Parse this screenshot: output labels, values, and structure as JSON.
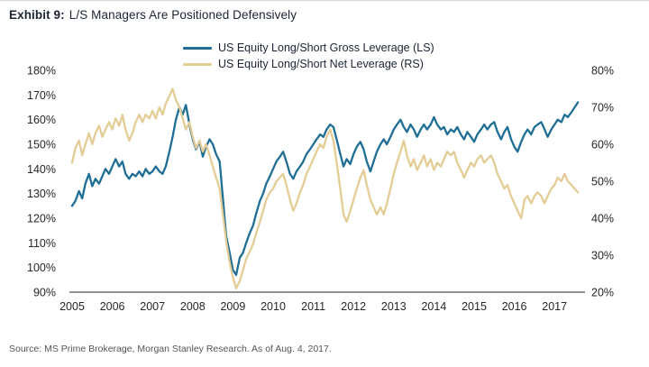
{
  "header": {
    "exhibit_label": "Exhibit 9:",
    "title": "L/S Managers Are Positioned Defensively"
  },
  "source": "Source: MS Prime Brokerage, Morgan Stanley Research. As of Aug. 4, 2017.",
  "colors": {
    "gross_line": "#1E6E96",
    "net_line": "#E3CD95",
    "axis_line": "#4d4d4d",
    "tick_text": "#262626",
    "title_text": "#1c2433"
  },
  "chart_data": {
    "type": "line",
    "title": "Exhibit 9: L/S Managers Are Positioned Defensively",
    "xlabel": "",
    "ylabel_left": "Gross Leverage (LS)",
    "ylabel_right": "Net Leverage (RS)",
    "grid": false,
    "legend_position": "top-center",
    "x_axis": {
      "tick_labels": [
        "2005",
        "2006",
        "2007",
        "2008",
        "2009",
        "2010",
        "2011",
        "2012",
        "2013",
        "2014",
        "2015",
        "2016",
        "2017"
      ],
      "min": 2005.0,
      "max": 2017.75
    },
    "left_axis": {
      "tick_labels": [
        "180%",
        "170%",
        "160%",
        "150%",
        "140%",
        "130%",
        "120%",
        "110%",
        "100%",
        "90%"
      ],
      "min": 90,
      "max": 180
    },
    "right_axis": {
      "tick_labels": [
        "80%",
        "70%",
        "60%",
        "50%",
        "40%",
        "30%",
        "20%"
      ],
      "min": 20,
      "max": 80
    },
    "x": [
      2005.0,
      2005.08,
      2005.17,
      2005.25,
      2005.33,
      2005.42,
      2005.5,
      2005.58,
      2005.67,
      2005.75,
      2005.83,
      2005.92,
      2006.0,
      2006.08,
      2006.17,
      2006.25,
      2006.33,
      2006.42,
      2006.5,
      2006.58,
      2006.67,
      2006.75,
      2006.83,
      2006.92,
      2007.0,
      2007.08,
      2007.17,
      2007.25,
      2007.33,
      2007.42,
      2007.5,
      2007.58,
      2007.67,
      2007.75,
      2007.83,
      2007.92,
      2008.0,
      2008.08,
      2008.17,
      2008.25,
      2008.33,
      2008.42,
      2008.5,
      2008.58,
      2008.67,
      2008.75,
      2008.83,
      2008.92,
      2009.0,
      2009.08,
      2009.17,
      2009.25,
      2009.33,
      2009.42,
      2009.5,
      2009.58,
      2009.67,
      2009.75,
      2009.83,
      2009.92,
      2010.0,
      2010.08,
      2010.17,
      2010.25,
      2010.33,
      2010.42,
      2010.5,
      2010.58,
      2010.67,
      2010.75,
      2010.83,
      2010.92,
      2011.0,
      2011.08,
      2011.17,
      2011.25,
      2011.33,
      2011.42,
      2011.5,
      2011.58,
      2011.67,
      2011.75,
      2011.83,
      2011.92,
      2012.0,
      2012.08,
      2012.17,
      2012.25,
      2012.33,
      2012.42,
      2012.5,
      2012.58,
      2012.67,
      2012.75,
      2012.83,
      2012.92,
      2013.0,
      2013.08,
      2013.17,
      2013.25,
      2013.33,
      2013.42,
      2013.5,
      2013.58,
      2013.67,
      2013.75,
      2013.83,
      2013.92,
      2014.0,
      2014.08,
      2014.17,
      2014.25,
      2014.33,
      2014.42,
      2014.5,
      2014.58,
      2014.67,
      2014.75,
      2014.83,
      2014.92,
      2015.0,
      2015.08,
      2015.17,
      2015.25,
      2015.33,
      2015.42,
      2015.5,
      2015.58,
      2015.67,
      2015.75,
      2015.83,
      2015.92,
      2016.0,
      2016.08,
      2016.17,
      2016.25,
      2016.33,
      2016.42,
      2016.5,
      2016.58,
      2016.67,
      2016.75,
      2016.83,
      2016.92,
      2017.0,
      2017.08,
      2017.17,
      2017.25,
      2017.33,
      2017.42,
      2017.5,
      2017.58
    ],
    "series": [
      {
        "name": "US Equity Long/Short Gross Leverage (LS)",
        "axis": "left",
        "color": "#1E6E96",
        "values": [
          125,
          127,
          131,
          128,
          134,
          138,
          133,
          136,
          134,
          137,
          140,
          138,
          141,
          144,
          141,
          143,
          138,
          136,
          138,
          137,
          139,
          137,
          140,
          138,
          139,
          141,
          139,
          138,
          141,
          147,
          153,
          160,
          165,
          162,
          166,
          158,
          152,
          148,
          151,
          145,
          149,
          152,
          150,
          146,
          143,
          128,
          113,
          106,
          99,
          97,
          104,
          106,
          110,
          114,
          117,
          122,
          127,
          130,
          134,
          137,
          140,
          143,
          145,
          147,
          143,
          138,
          136,
          139,
          141,
          143,
          146,
          148,
          150,
          152,
          154,
          153,
          156,
          158,
          157,
          152,
          146,
          141,
          144,
          142,
          146,
          149,
          151,
          148,
          143,
          139,
          143,
          147,
          150,
          152,
          150,
          153,
          156,
          158,
          160,
          157,
          155,
          158,
          156,
          153,
          156,
          158,
          156,
          158,
          161,
          158,
          156,
          157,
          154,
          156,
          155,
          157,
          154,
          152,
          155,
          153,
          151,
          154,
          156,
          158,
          156,
          158,
          159,
          155,
          152,
          155,
          157,
          152,
          149,
          147,
          151,
          154,
          156,
          154,
          157,
          158,
          159,
          156,
          153,
          156,
          158,
          160,
          159,
          162,
          161,
          163,
          165,
          167
        ]
      },
      {
        "name": "US Equity Long/Short Net Leverage (RS)",
        "axis": "right",
        "color": "#E3CD95",
        "values": [
          55,
          59,
          61,
          57,
          60,
          63,
          60,
          63,
          65,
          62,
          64,
          66,
          64,
          67,
          65,
          68,
          64,
          61,
          63,
          66,
          68,
          66,
          68,
          67,
          69,
          67,
          70,
          68,
          71,
          73,
          75,
          72,
          70,
          67,
          64,
          66,
          62,
          59,
          61,
          58,
          60,
          57,
          54,
          51,
          48,
          41,
          34,
          28,
          24,
          21,
          23,
          26,
          29,
          31,
          33,
          36,
          39,
          42,
          45,
          47,
          48,
          50,
          51,
          52,
          49,
          45,
          42,
          44,
          47,
          49,
          52,
          54,
          56,
          58,
          60,
          59,
          62,
          64,
          61,
          55,
          48,
          41,
          39,
          42,
          45,
          48,
          51,
          53,
          49,
          45,
          43,
          41,
          43,
          41,
          44,
          48,
          52,
          55,
          58,
          61,
          57,
          54,
          56,
          53,
          55,
          57,
          54,
          56,
          53,
          55,
          54,
          56,
          58,
          57,
          58,
          55,
          53,
          51,
          53,
          55,
          54,
          56,
          57,
          55,
          56,
          57,
          55,
          52,
          50,
          48,
          49,
          46,
          44,
          42,
          40,
          45,
          46,
          44,
          46,
          47,
          46,
          44,
          46,
          48,
          49,
          51,
          50,
          52,
          50,
          49,
          48,
          47
        ]
      }
    ]
  }
}
